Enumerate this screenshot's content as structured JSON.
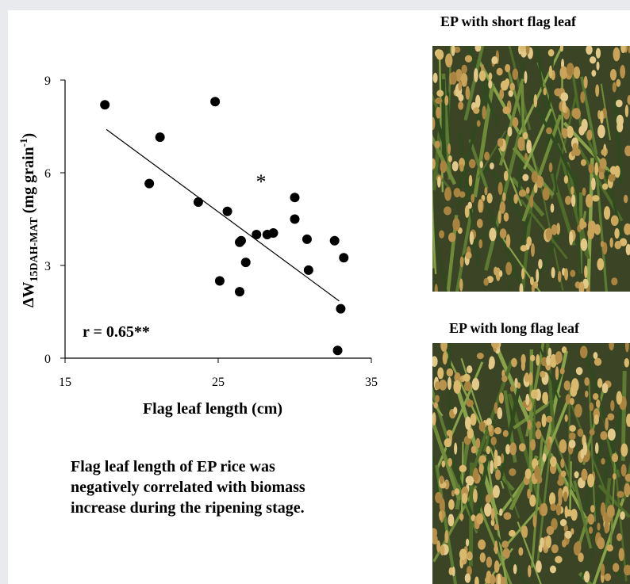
{
  "chart_data": {
    "type": "scatter",
    "title": "",
    "xlabel": "Flag leaf length (cm)",
    "ylabel": {
      "prefix": "ΔW",
      "subscript": "15DAH-MAT",
      "unit": " (mg grain",
      "unit_sup": "-1",
      "unit_close": ")"
    },
    "xlim": [
      15,
      35
    ],
    "ylim": [
      0,
      9
    ],
    "x_ticks": [
      15,
      25,
      35
    ],
    "y_ticks": [
      0,
      3,
      6,
      9
    ],
    "grid": false,
    "points": [
      {
        "x": 17.6,
        "y": 8.2
      },
      {
        "x": 24.8,
        "y": 8.3
      },
      {
        "x": 21.2,
        "y": 7.15
      },
      {
        "x": 20.5,
        "y": 5.65
      },
      {
        "x": 23.7,
        "y": 5.05
      },
      {
        "x": 25.6,
        "y": 4.75
      },
      {
        "x": 26.5,
        "y": 3.8
      },
      {
        "x": 26.4,
        "y": 3.75
      },
      {
        "x": 26.8,
        "y": 3.1
      },
      {
        "x": 27.5,
        "y": 4.0
      },
      {
        "x": 28.2,
        "y": 4.0
      },
      {
        "x": 28.6,
        "y": 4.05
      },
      {
        "x": 30.0,
        "y": 5.2
      },
      {
        "x": 30.0,
        "y": 4.5
      },
      {
        "x": 30.8,
        "y": 3.85
      },
      {
        "x": 30.9,
        "y": 2.85
      },
      {
        "x": 32.6,
        "y": 3.8
      },
      {
        "x": 33.2,
        "y": 3.25
      },
      {
        "x": 33.0,
        "y": 1.6
      },
      {
        "x": 32.8,
        "y": 0.25
      },
      {
        "x": 25.1,
        "y": 2.5
      },
      {
        "x": 26.4,
        "y": 2.15
      }
    ],
    "trendline": {
      "x": [
        17.7,
        32.9
      ],
      "y": [
        7.4,
        1.85
      ]
    },
    "annotations": {
      "marker": "*",
      "marker_x": 27.8,
      "marker_y": 5.75,
      "stat": "r = 0.65**"
    }
  },
  "caption": "Flag leaf length of EP rice was\nnegatively correlated with biomass\nincrease during the ripening stage.",
  "photos": [
    {
      "title": "EP with short flag leaf",
      "theme": "short"
    },
    {
      "title": "EP with long flag leaf",
      "theme": "long"
    }
  ]
}
